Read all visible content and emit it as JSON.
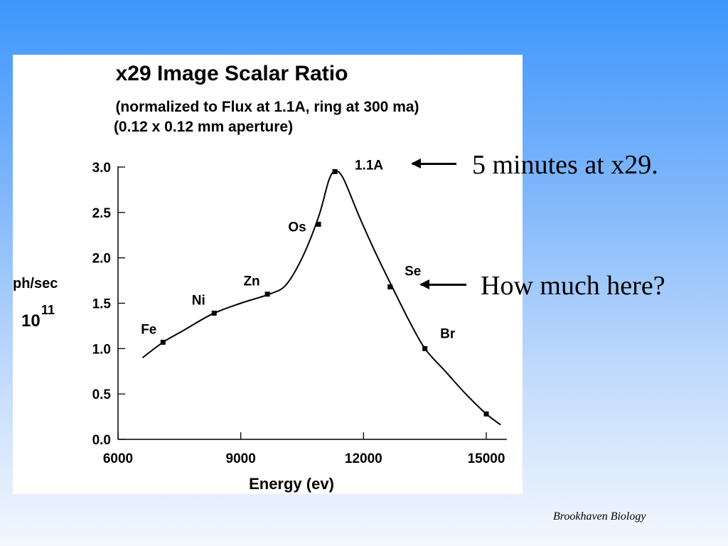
{
  "chart_data": {
    "type": "line",
    "title": "x29 Image Scalar Ratio",
    "subtitle_1": "(normalized to Flux at 1.1A, ring at 300 ma)",
    "subtitle_2": "(0.12 x 0.12 mm aperture)",
    "xlabel": "Energy (ev)",
    "ylabel_1": "ph/sec",
    "ylabel_2": "10",
    "ylabel_exp": "11",
    "xlim": [
      6000,
      15500
    ],
    "ylim": [
      0,
      3.0
    ],
    "xticks": [
      6000,
      9000,
      12000,
      15000
    ],
    "xtick_labels": [
      "6000",
      "9000",
      "12000",
      "15000"
    ],
    "yticks": [
      0,
      0.5,
      1.0,
      1.5,
      2.0,
      2.5,
      3.0
    ],
    "ytick_labels": [
      "0.0",
      "0.5",
      "1.0",
      "1.5",
      "2.0",
      "2.5",
      "3.0"
    ],
    "grid": false,
    "curve": {
      "x": [
        6600,
        7100,
        7600,
        8300,
        9000,
        9700,
        10100,
        10500,
        10900,
        11150,
        11300,
        11500,
        11900,
        12300,
        12700,
        13100,
        13500,
        14000,
        14500,
        15000,
        15350
      ],
      "y": [
        0.9,
        1.07,
        1.2,
        1.38,
        1.5,
        1.6,
        1.7,
        2.0,
        2.45,
        2.85,
        2.95,
        2.88,
        2.45,
        2.05,
        1.68,
        1.32,
        1.0,
        0.75,
        0.5,
        0.28,
        0.16
      ]
    },
    "points": [
      {
        "label": "Fe",
        "x": 7100,
        "y": 1.07
      },
      {
        "label": "Ni",
        "x": 8350,
        "y": 1.39
      },
      {
        "label": "Zn",
        "x": 9650,
        "y": 1.6
      },
      {
        "label": "Os",
        "x": 10900,
        "y": 2.37
      },
      {
        "label": "1.1A",
        "x": 11300,
        "y": 2.95
      },
      {
        "label": "Se",
        "x": 12650,
        "y": 1.68
      },
      {
        "label": "Br",
        "x": 13500,
        "y": 1.0
      },
      {
        "label": "",
        "x": 15000,
        "y": 0.28
      }
    ]
  },
  "annotations": {
    "note_1": "5 minutes at x29.",
    "note_2": "How much here?"
  },
  "footer": {
    "credit": "Brookhaven Biology"
  },
  "colors": {
    "background_top": "#3d96fb",
    "background_bottom": "#f4f8fe",
    "panel": "#ffffff",
    "ink": "#000000"
  }
}
